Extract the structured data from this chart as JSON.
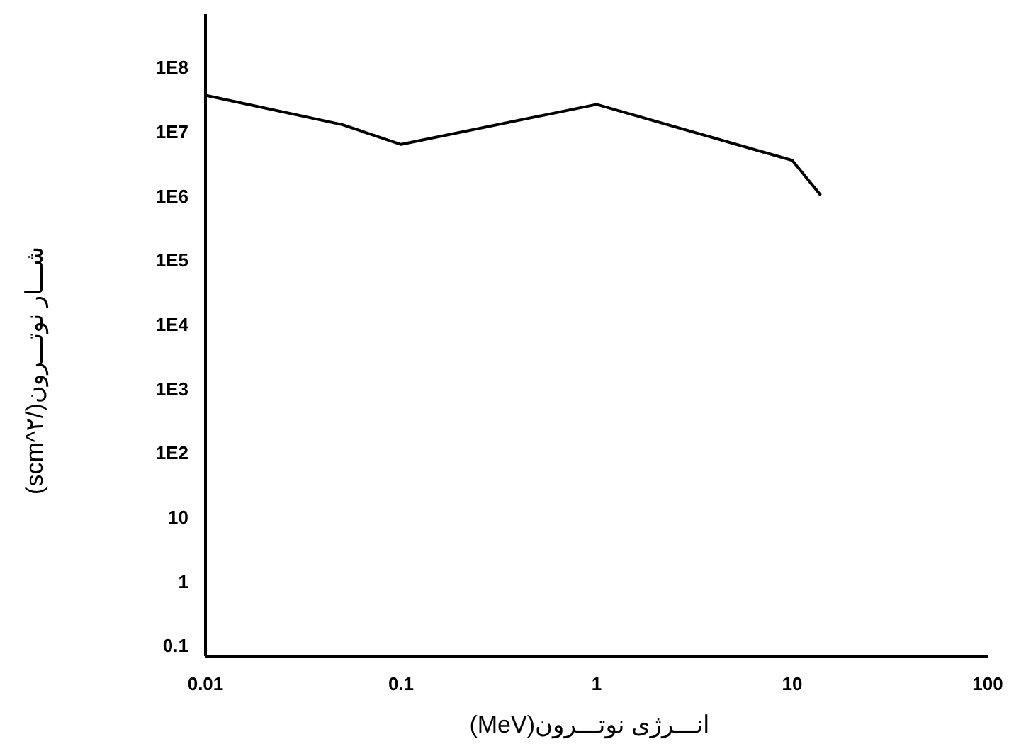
{
  "chart_data": {
    "type": "line",
    "xlabel": "انـــرژی نوتـــرون(MeV)",
    "ylabel": "شـــار نوتـــرون(/scm^۲)",
    "log": "xy",
    "xlim": [
      0.01,
      100
    ],
    "xticks": [
      0.01,
      0.1,
      1,
      10,
      100
    ],
    "ylim": [
      0.067,
      660000000
    ],
    "yticks": [
      0.1,
      1,
      10,
      {
        "value": 100,
        "label": "1E2"
      },
      {
        "value": 1000,
        "label": "1E3"
      },
      {
        "value": 10000,
        "label": "1E4"
      },
      {
        "value": 100000,
        "label": "1E5"
      },
      {
        "value": 1000000,
        "label": "1E6"
      },
      {
        "value": 10000000,
        "label": "1E7"
      },
      {
        "value": 100000000,
        "label": "1E8"
      }
    ],
    "x": [
      0.01,
      0.05,
      0.1,
      1,
      10,
      14
    ],
    "series": [
      {
        "color": "#000000",
        "values": [
          36000000,
          12600000,
          6200000,
          26000000,
          3500000,
          1000000
        ]
      }
    ]
  }
}
